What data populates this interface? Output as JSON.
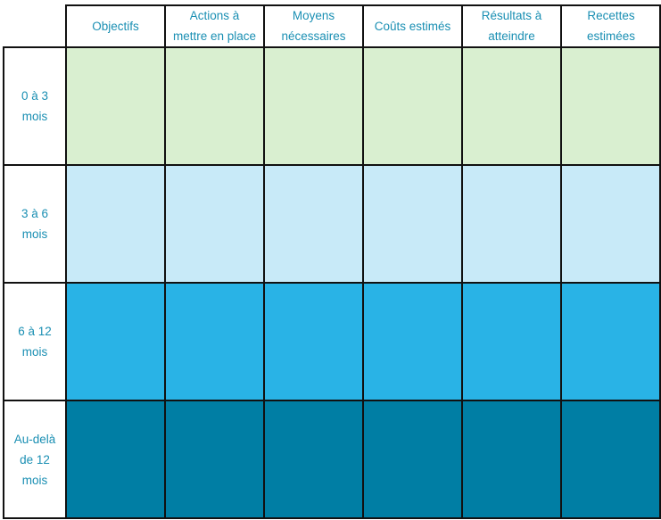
{
  "table": {
    "columns": [
      "Objectifs",
      "Actions à\nmettre en place",
      "Moyens\nnécessaires",
      "Coûts estimés",
      "Résultats à\natteindre",
      "Recettes\nestimées"
    ],
    "rows": [
      {
        "label": "0 à 3\nmois",
        "fill": "#d9efd0"
      },
      {
        "label": "3 à 6\nmois",
        "fill": "#c8eaf8"
      },
      {
        "label": "6 à 12\nmois",
        "fill": "#29b3e6"
      },
      {
        "label": "Au-delà\nde 12\nmois",
        "fill": "#007ea4"
      }
    ],
    "text_color": "#1a8fb3",
    "border_color": "#111111"
  }
}
